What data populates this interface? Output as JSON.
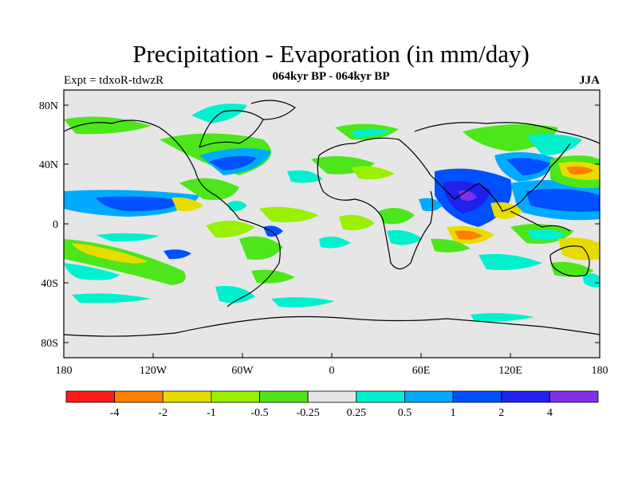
{
  "header": {
    "title": "Precipitation - Evaporation (in mm/day)",
    "subtitle": "064kyr BP - 064kyr BP",
    "left_label": "Expt = tdxoR-tdwzR",
    "right_label": "JJA"
  },
  "axes": {
    "lat_ticks": [
      "80N",
      "40N",
      "0",
      "40S",
      "80S"
    ],
    "lon_ticks": [
      "180",
      "120W",
      "60W",
      "0",
      "60E",
      "120E",
      "180"
    ]
  },
  "colorbar": {
    "colors": [
      "#ff1a1a",
      "#ff8000",
      "#e6dc00",
      "#99f000",
      "#4de61a",
      "#e6e6e6",
      "#00f0d0",
      "#00aaff",
      "#0050ff",
      "#2020ee",
      "#8030e8"
    ],
    "labels": [
      "-4",
      "-2",
      "-1",
      "-0.5",
      "-0.25",
      "0.25",
      "0.5",
      "1",
      "2",
      "4"
    ]
  },
  "map": {
    "neutral_color": "#e6e6e6",
    "coast_color": "#000000"
  }
}
